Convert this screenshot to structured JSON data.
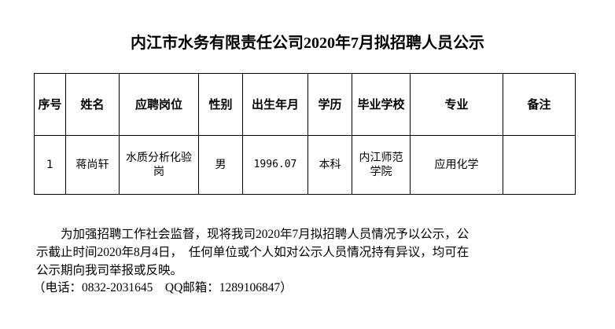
{
  "title": "内江市水务有限责任公司2020年7月拟招聘人员公示",
  "table": {
    "headers": [
      "序号",
      "姓名",
      "应聘岗位",
      "性别",
      "出生年月",
      "学历",
      "毕业学校",
      "专业",
      "备注"
    ],
    "rows": [
      [
        "1",
        "蒋尚轩",
        "水质分析化验岗",
        "男",
        "1996.07",
        "本科",
        "内江师范学院",
        "应用化学",
        ""
      ]
    ]
  },
  "notice": {
    "lines": [
      "        为加强招聘工作社会监督，现将我司2020年7月拟招聘人员情况予以公示，公",
      "示截止时间2020年8月4日，  任何单位或个人如对公示人员情况持有异议，均可在",
      "公示期向我司举报或反映。",
      "（电话：0832-2031645    QQ邮箱：1289106847）"
    ]
  }
}
